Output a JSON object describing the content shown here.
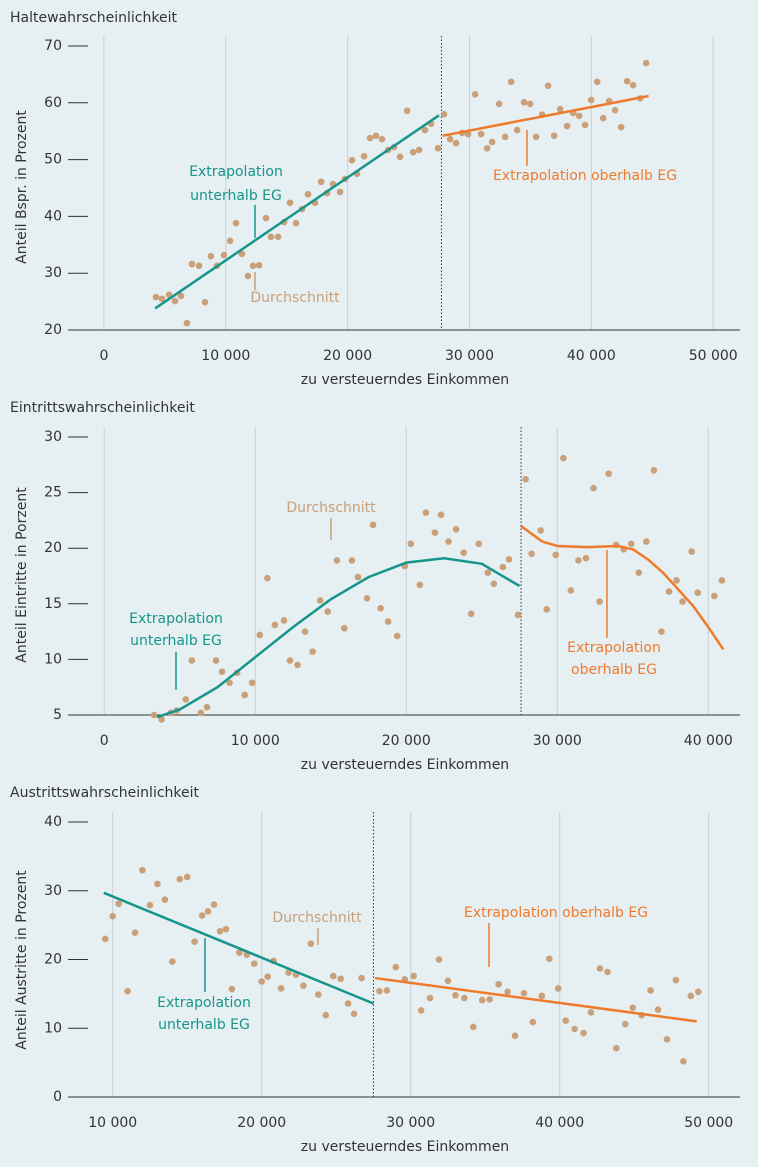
{
  "chart_data": [
    {
      "type": "scatter",
      "title": "Haltewahrscheinlichkeit",
      "x_label": "zu versteuerndes Einkommen",
      "y_label": "Anteil Bspr. in Prozent",
      "xlim": [
        -2950,
        52200
      ],
      "ylim": [
        20,
        70
      ],
      "xticks": [
        0,
        {
          "value": 10000,
          "label": "10 000"
        },
        {
          "value": 20000,
          "label": "20 000"
        },
        {
          "value": 30000,
          "label": "30 000"
        },
        {
          "value": 40000,
          "label": "40 000"
        },
        {
          "value": 50000,
          "label": "50 000"
        }
      ],
      "yticks": [
        20,
        30,
        40,
        50,
        60,
        70
      ],
      "grid": true,
      "reference_line": 27700,
      "series": [
        {
          "type": "scatter",
          "label": [
            "Durchschnitt"
          ],
          "color": "#c9a07a",
          "x": [
            4270,
            4760,
            5340,
            5830,
            6320,
            6810,
            7220,
            7800,
            8290,
            8780,
            9280,
            9850,
            10350,
            10840,
            11330,
            11820,
            12230,
            12730,
            13300,
            13710,
            14290,
            14780,
            15270,
            15760,
            16260,
            16750,
            17320,
            17820,
            18310,
            18800,
            19380,
            19790,
            20360,
            20770,
            21350,
            21840,
            22330,
            22820,
            23320,
            23810,
            24300,
            24880,
            25370,
            25860,
            26350,
            26850,
            27420,
            27910,
            28410,
            28900,
            29390,
            29880,
            30460,
            30950,
            31450,
            31860,
            32430,
            32920,
            33420,
            33910,
            34480,
            34980,
            35470,
            35960,
            36450,
            36950,
            37440,
            38010,
            38510,
            39000,
            39490,
            39980,
            40480,
            40970,
            41460,
            41950,
            42450,
            42940,
            43430,
            44010,
            44500
          ],
          "values": [
            25.8,
            25.5,
            26.2,
            25.1,
            26,
            21.2,
            31.6,
            31.3,
            24.9,
            33,
            31.3,
            33.2,
            35.7,
            38.8,
            33.4,
            29.5,
            31.3,
            31.4,
            39.7,
            36.4,
            36.4,
            39,
            42.4,
            38.8,
            41.3,
            43.9,
            42.4,
            46.1,
            44.1,
            45.7,
            44.3,
            46.6,
            49.9,
            47.5,
            50.6,
            53.8,
            54.2,
            53.6,
            51.7,
            52.2,
            50.5,
            58.6,
            51.3,
            51.7,
            55.2,
            56.3,
            52,
            58,
            53.6,
            52.9,
            54.7,
            54.5,
            61.5,
            54.5,
            52,
            53.1,
            59.8,
            54,
            63.7,
            55.2,
            60.1,
            59.8,
            54,
            57.9,
            63,
            54.2,
            58.9,
            55.9,
            58.2,
            57.7,
            56.1,
            60.5,
            63.7,
            57.3,
            60.3,
            58.7,
            55.7,
            63.8,
            63.1,
            60.8,
            67
          ]
        },
        {
          "type": "line",
          "label": [
            "Extrapolation",
            "unterhalb EG"
          ],
          "color": "#17958b",
          "x": [
            4200,
            27500
          ],
          "values": [
            23.8,
            57.8
          ]
        },
        {
          "type": "line",
          "label": [
            "Extrapolation oberhalb EG"
          ],
          "color": "#f07a2c",
          "x": [
            27800,
            44700
          ],
          "values": [
            54.2,
            61.2
          ]
        }
      ]
    },
    {
      "type": "scatter",
      "title": "Eintrittswahrscheinlichkeit",
      "x_label": "zu versteuerndes Einkommen",
      "y_label": "Anteil Eintritte in Porzent",
      "xlim": [
        -2400,
        42100
      ],
      "ylim": [
        5,
        30
      ],
      "xticks": [
        0,
        {
          "value": 10000,
          "label": "10 000"
        },
        {
          "value": 20000,
          "label": "20 000"
        },
        {
          "value": 30000,
          "label": "30 000"
        },
        {
          "value": 40000,
          "label": "40 000"
        }
      ],
      "yticks": [
        5,
        10,
        15,
        20,
        25,
        30
      ],
      "grid": true,
      "reference_line": 27600,
      "series": [
        {
          "type": "scatter",
          "label": [
            "Durchschnitt"
          ],
          "color": "#c9a07a",
          "x": [
            3300,
            3800,
            4400,
            4800,
            5400,
            5800,
            6400,
            6800,
            7400,
            7800,
            8300,
            8800,
            9300,
            9800,
            10300,
            10800,
            11300,
            11900,
            12300,
            12800,
            13300,
            13800,
            14300,
            14800,
            15400,
            15900,
            16400,
            16800,
            17400,
            17800,
            18300,
            18800,
            19400,
            19900,
            20300,
            20900,
            21300,
            21900,
            22300,
            22800,
            23300,
            23800,
            24300,
            24800,
            25400,
            25800,
            26400,
            26800,
            27400,
            27900,
            28300,
            28900,
            29300,
            29900,
            30400,
            30900,
            31400,
            31900,
            32400,
            32800,
            33400,
            33900,
            34400,
            34900,
            35400,
            35900,
            36400,
            36900,
            37400,
            37900,
            38300,
            38900,
            39300,
            40400,
            40900
          ],
          "values": [
            5,
            4.6,
            5.2,
            5.4,
            6.4,
            9.9,
            5.2,
            5.7,
            9.9,
            8.9,
            7.9,
            8.8,
            6.8,
            7.9,
            12.2,
            17.3,
            13.1,
            13.5,
            9.9,
            9.5,
            12.5,
            10.7,
            15.3,
            14.3,
            18.9,
            12.8,
            18.9,
            17.4,
            15.5,
            22.1,
            14.6,
            13.4,
            12.1,
            18.4,
            20.4,
            16.7,
            23.2,
            21.4,
            23,
            20.6,
            21.7,
            19.6,
            14.1,
            20.4,
            17.8,
            16.8,
            18.3,
            19,
            14,
            26.2,
            19.5,
            21.6,
            14.5,
            19.4,
            28.1,
            16.2,
            18.9,
            19.1,
            25.4,
            15.2,
            26.7,
            20.3,
            19.9,
            20.4,
            17.8,
            20.6,
            27,
            12.5,
            16.1,
            17.1,
            15.2,
            19.7,
            16,
            15.7,
            17.1
          ]
        },
        {
          "type": "line",
          "label": [
            "Extrapolation",
            "unterhalb EG"
          ],
          "color": "#17958b",
          "x": [
            3500,
            5000,
            7500,
            10000,
            12500,
            15000,
            17500,
            20000,
            22500,
            25000,
            27500
          ],
          "values": [
            4.8,
            5.5,
            7.5,
            10.2,
            12.9,
            15.4,
            17.4,
            18.7,
            19.1,
            18.6,
            16.6
          ]
        },
        {
          "type": "line",
          "label": [
            "Extrapolation",
            "oberhalb EG"
          ],
          "color": "#f07a2c",
          "x": [
            27600,
            29000,
            30000,
            32000,
            34000,
            35000,
            36000,
            37000,
            38000,
            39000,
            40000,
            41000
          ],
          "values": [
            22,
            20.6,
            20.2,
            20.1,
            20.2,
            19.9,
            19,
            17.8,
            16.3,
            14.8,
            12.9,
            10.9
          ]
        }
      ]
    },
    {
      "type": "scatter",
      "title": "Austrittswahrscheinlichkeit",
      "x_label": "zu versteuerndes Einkommen",
      "y_label": "Anteil Austritte in Prozent",
      "xlim": [
        7000,
        52100
      ],
      "ylim": [
        0,
        40
      ],
      "xticks": [
        {
          "value": 10000,
          "label": "10 000"
        },
        {
          "value": 20000,
          "label": "20 000"
        },
        {
          "value": 30000,
          "label": "30 000"
        },
        {
          "value": 40000,
          "label": "40 000"
        },
        {
          "value": 50000,
          "label": "50 000"
        }
      ],
      "yticks": [
        0,
        10,
        20,
        30,
        40
      ],
      "grid": true,
      "reference_line": 27500,
      "series": [
        {
          "type": "scatter",
          "label": [
            "Durchschnitt"
          ],
          "color": "#c9a07a",
          "x": [
            9500,
            10000,
            10400,
            11000,
            11500,
            12000,
            12500,
            13000,
            13500,
            14000,
            14500,
            15000,
            15500,
            16000,
            16400,
            16800,
            17200,
            17600,
            18000,
            18500,
            19000,
            19500,
            20000,
            20400,
            20800,
            21300,
            21800,
            22300,
            22800,
            23300,
            23800,
            24300,
            24800,
            25300,
            25800,
            26200,
            26700,
            27900,
            28400,
            29000,
            29600,
            30200,
            30700,
            31300,
            31900,
            32500,
            33000,
            33600,
            34200,
            34800,
            35300,
            35900,
            36500,
            37000,
            37600,
            38200,
            38800,
            39300,
            39900,
            40400,
            41000,
            41600,
            42100,
            42700,
            43200,
            43800,
            44400,
            44900,
            45500,
            46100,
            46600,
            47200,
            47800,
            48300,
            48800,
            49300
          ],
          "values": [
            23,
            26.3,
            28.1,
            15.4,
            23.9,
            33,
            27.9,
            31,
            28.7,
            19.7,
            31.7,
            32,
            22.6,
            26.4,
            27,
            28,
            24.1,
            24.4,
            15.7,
            21,
            20.7,
            19.4,
            16.8,
            17.5,
            19.8,
            15.8,
            18.1,
            17.8,
            16.2,
            22.3,
            14.9,
            11.9,
            17.6,
            17.2,
            13.6,
            12.1,
            17.3,
            15.4,
            15.5,
            18.9,
            17.1,
            17.6,
            12.6,
            14.4,
            20,
            16.9,
            14.8,
            14.4,
            10.2,
            14.1,
            14.2,
            16.4,
            15.3,
            8.9,
            15.1,
            10.9,
            14.7,
            20.1,
            15.8,
            11.1,
            9.9,
            9.3,
            12.3,
            18.7,
            18.2,
            7.1,
            10.6,
            13,
            11.9,
            15.5,
            12.7,
            8.4,
            17,
            5.2,
            14.7,
            15.3
          ]
        },
        {
          "type": "line",
          "label": [
            "Extrapolation",
            "unterhalb EG"
          ],
          "color": "#17958b",
          "x": [
            9400,
            27500
          ],
          "values": [
            29.7,
            13.6
          ]
        },
        {
          "type": "line",
          "label": [
            "Extrapolation oberhalb EG"
          ],
          "color": "#f07a2c",
          "x": [
            27600,
            49200
          ],
          "values": [
            17.3,
            11
          ]
        }
      ]
    }
  ]
}
